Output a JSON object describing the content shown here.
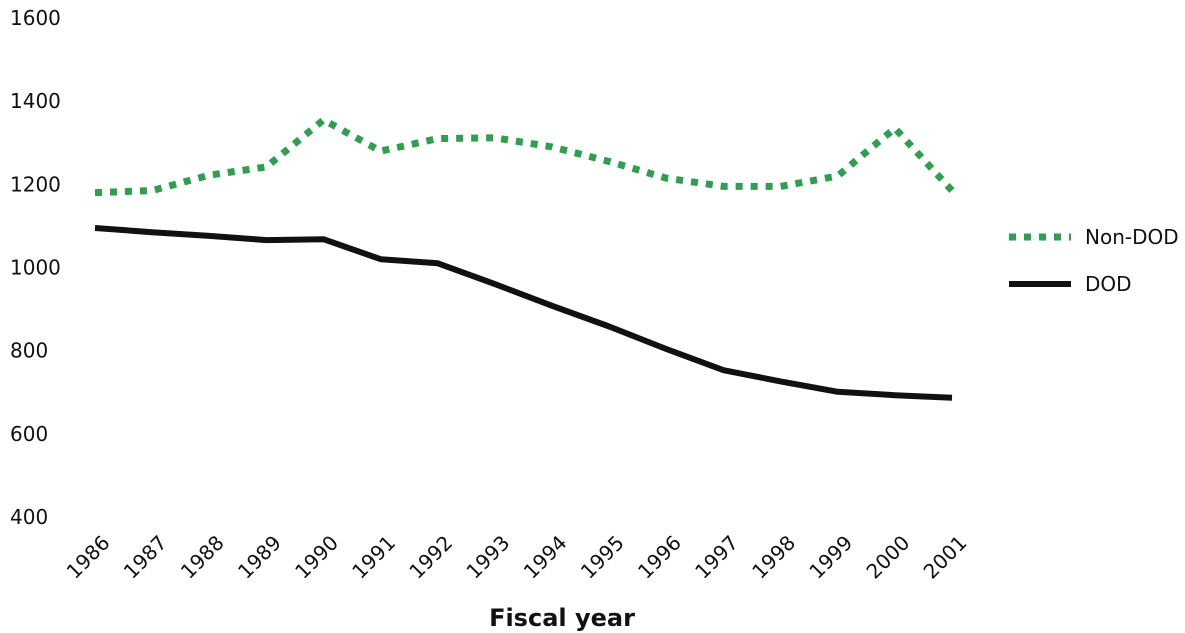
{
  "chart_data": {
    "type": "line",
    "title": "",
    "xlabel": "Fiscal year",
    "ylabel": "",
    "x": [
      "1986",
      "1987",
      "1988",
      "1989",
      "1990",
      "1991",
      "1992",
      "1993",
      "1994",
      "1995",
      "1996",
      "1997",
      "1998",
      "1999",
      "2000",
      "2001"
    ],
    "ylim": [
      400,
      1600
    ],
    "yticks": [
      400,
      600,
      800,
      1000,
      1200,
      1400,
      1600
    ],
    "grid": false,
    "legend_position": "right",
    "series": [
      {
        "name": "Non-DOD",
        "style": "dotted",
        "color": "#2e9e4f",
        "values": [
          1180,
          1185,
          1222,
          1242,
          1355,
          1280,
          1310,
          1312,
          1290,
          1255,
          1215,
          1195,
          1195,
          1220,
          1335,
          1185
        ]
      },
      {
        "name": "DOD",
        "style": "solid",
        "color": "#111111",
        "values": [
          1095,
          1085,
          1076,
          1066,
          1068,
          1020,
          1010,
          960,
          908,
          858,
          804,
          753,
          726,
          701,
          693,
          687
        ]
      }
    ]
  }
}
